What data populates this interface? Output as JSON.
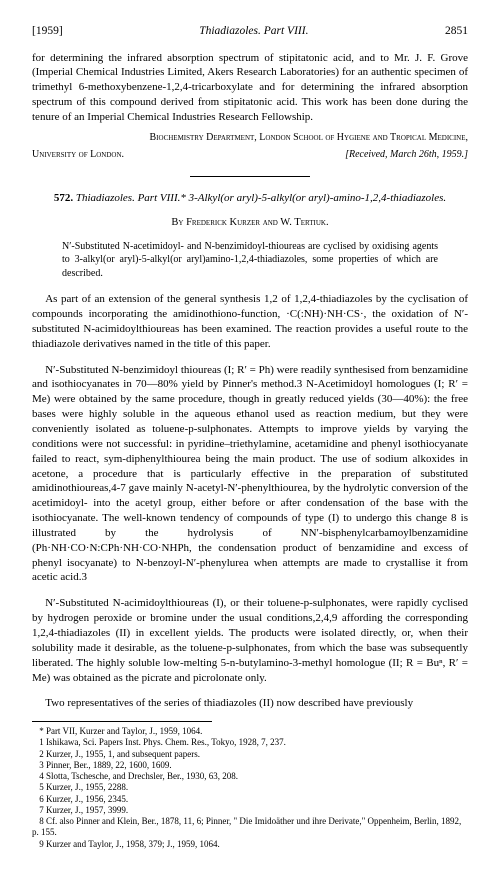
{
  "header": {
    "year": "[1959]",
    "running": "Thiadiazoles.  Part VIII.",
    "page": "2851"
  },
  "top_paragraph": "for determining the infrared absorption spectrum of stipitatonic acid, and to Mr. J. F. Grove (Imperial Chemical Industries Limited, Akers Research Laboratories) for an authentic specimen of trimethyl 6-methoxybenzene-1,2,4-tricarboxylate and for determining the infrared absorption spectrum of this compound derived from stipitatonic acid. This work has been done during the tenure of an Imperial Chemical Industries Research Fellowship.",
  "affiliation_line1": "Biochemistry Department, London School of Hygiene and Tropical Medicine,",
  "affiliation_line2": "University of London.",
  "received": "[Received, March 26th, 1959.]",
  "title": {
    "number": "572.",
    "main_ital": "Thiadiazoles.  Part VIII.*",
    "sub": "3-Alkyl(or aryl)-5-alkyl(or aryl)-amino-1,2,4-thiadiazoles."
  },
  "authors": "By Frederick Kurzer and W. Tertiuk.",
  "abstract": "N′-Substituted N-acetimidoyl- and N-benzimidoyl-thioureas are cyclised by oxidising agents to 3-alkyl(or aryl)-5-alkyl(or aryl)amino-1,2,4-thiadiazoles, some properties of which are described.",
  "paragraphs": [
    "As part of an extension of the general synthesis 1,2 of 1,2,4-thiadiazoles by the cyclisation of compounds incorporating the amidinothiono-function, ·C(:NH)·NH·CS·, the oxidation of N′-substituted N-acimidoylthioureas has been examined. The reaction provides a useful route to the thiadiazole derivatives named in the title of this paper.",
    "N′-Substituted N-benzimidoyl thioureas (I; R′ = Ph) were readily synthesised from benzamidine and isothiocyanates in 70—80% yield by Pinner's method.3 N-Acetimidoyl homologues (I; R′ = Me) were obtained by the same procedure, though in greatly reduced yields (30—40%): the free bases were highly soluble in the aqueous ethanol used as reaction medium, but they were conveniently isolated as toluene-p-sulphonates. Attempts to improve yields by varying the conditions were not successful: in pyridine–triethylamine, acetamidine and phenyl isothiocyanate failed to react, sym-diphenylthiourea being the main product. The use of sodium alkoxides in acetone, a procedure that is particularly effective in the preparation of substituted amidinothioureas,4-7 gave mainly N-acetyl-N′-phenylthiourea, by the hydrolytic conversion of the acetimidoyl- into the acetyl group, either before or after condensation of the base with the isothiocyanate. The well-known tendency of compounds of type (I) to undergo this change 8 is illustrated by the hydrolysis of NN′-bisphenylcarbamoylbenzamidine (Ph·NH·CO·N:CPh·NH·CO·NHPh, the condensation product of benzamidine and excess of phenyl isocyanate) to N-benzoyl-N′-phenylurea when attempts are made to crystallise it from acetic acid.3",
    "N′-Substituted N-acimidoylthioureas (I), or their toluene-p-sulphonates, were rapidly cyclised by hydrogen peroxide or bromine under the usual conditions,2,4,9 affording the corresponding 1,2,4-thiadiazoles (II) in excellent yields. The products were isolated directly, or, when their solubility made it desirable, as the toluene-p-sulphonates, from which the base was subsequently liberated. The highly soluble low-melting 5-n-butylamino-3-methyl homologue (II; R = Buⁿ, R′ = Me) was obtained as the picrate and picrolonate only.",
    "Two representatives of the series of thiadiazoles (II) now described have previously"
  ],
  "footnotes": [
    "* Part VII, Kurzer and Taylor, J., 1959, 1064.",
    "1 Ishikawa, Sci. Papers Inst. Phys. Chem. Res., Tokyo, 1928, 7, 237.",
    "2 Kurzer, J., 1955, 1, and subsequent papers.",
    "3 Pinner, Ber., 1889, 22, 1600, 1609.",
    "4 Slotta, Tschesche, and Drechsler, Ber., 1930, 63, 208.",
    "5 Kurzer, J., 1955, 2288.",
    "6 Kurzer, J., 1956, 2345.",
    "7 Kurzer, J., 1957, 3999.",
    "8 Cf. also Pinner and Klein, Ber., 1878, 11, 6; Pinner, \" Die Imidoäther und ihre Derivate,\" Oppenheim, Berlin, 1892, p. 155.",
    "9 Kurzer and Taylor, J., 1958, 379; J., 1959, 1064."
  ]
}
